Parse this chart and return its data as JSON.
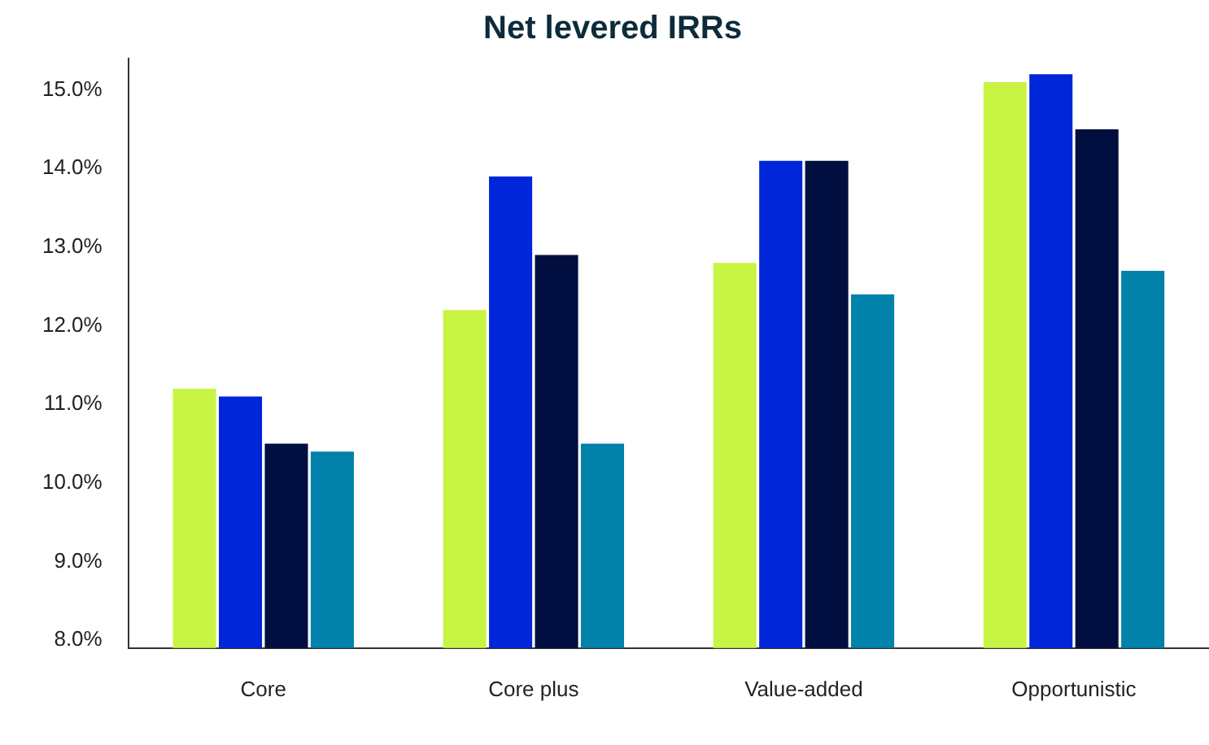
{
  "chart_data": {
    "type": "bar",
    "title": "Net levered IRRs",
    "categories": [
      "Core",
      "Core plus",
      "Value-added",
      "Opportunistic"
    ],
    "series": [
      {
        "color": "#c8f444",
        "values": [
          11.2,
          12.2,
          12.8,
          15.1
        ]
      },
      {
        "color": "#0026d9",
        "values": [
          11.1,
          13.9,
          14.1,
          15.2
        ]
      },
      {
        "color": "#000f3f",
        "values": [
          10.5,
          12.9,
          14.1,
          14.5
        ]
      },
      {
        "color": "#0082aa",
        "values": [
          10.4,
          10.5,
          12.4,
          12.7
        ]
      }
    ],
    "ylim": [
      7.9,
      15.4
    ],
    "yticks": [
      {
        "value": 8,
        "label": "8.0%"
      },
      {
        "value": 9,
        "label": "9.0%"
      },
      {
        "value": 10,
        "label": "10.0%"
      },
      {
        "value": 11,
        "label": "11.0%"
      },
      {
        "value": 12,
        "label": "12.0%"
      },
      {
        "value": 13,
        "label": "13.0%"
      },
      {
        "value": 14,
        "label": "14.0%"
      },
      {
        "value": 15,
        "label": "15.0%"
      }
    ],
    "grid": false,
    "legend": false
  }
}
